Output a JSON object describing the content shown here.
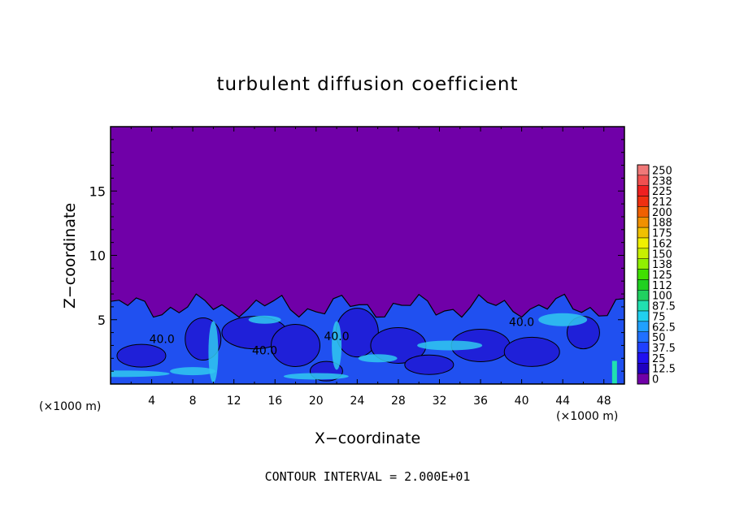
{
  "chart_data": {
    "type": "heatmap",
    "title": "turbulent diffusion coefficient",
    "xlabel": "X−coordinate",
    "ylabel": "Z−coordinate",
    "x_unit_left": "(×1000 m)",
    "x_unit_right": "(×1000 m)",
    "footer": "CONTOUR INTERVAL = 2.000E+01",
    "xlim": [
      0,
      50
    ],
    "ylim": [
      0,
      20
    ],
    "x_ticks": [
      4,
      8,
      12,
      16,
      20,
      24,
      28,
      32,
      36,
      40,
      44,
      48
    ],
    "y_ticks": [
      5,
      10,
      15
    ],
    "contour_labels": [
      {
        "text": "40.0",
        "x": 5.0,
        "y": 3.2
      },
      {
        "text": "40.0",
        "x": 15.0,
        "y": 2.3
      },
      {
        "text": "40.0",
        "x": 22.0,
        "y": 3.4
      },
      {
        "text": "40.0",
        "x": 40.0,
        "y": 4.5
      }
    ],
    "colorbar": {
      "labels": [
        "250",
        "238",
        "225",
        "212",
        "200",
        "188",
        "175",
        "162",
        "150",
        "138",
        "125",
        "112",
        "100",
        "87.5",
        "75",
        "62.5",
        "50",
        "37.5",
        "25",
        "12.5",
        "0"
      ],
      "colors": [
        "#f07878",
        "#f05050",
        "#ee2020",
        "#f03010",
        "#f06000",
        "#f09000",
        "#f0c000",
        "#f0f000",
        "#c8f000",
        "#90f000",
        "#40e000",
        "#20d020",
        "#20d060",
        "#20e0b0",
        "#20d0f0",
        "#20a0ff",
        "#2070ff",
        "#2040ff",
        "#2010f0",
        "#2000c0",
        "#7000a8"
      ]
    }
  }
}
